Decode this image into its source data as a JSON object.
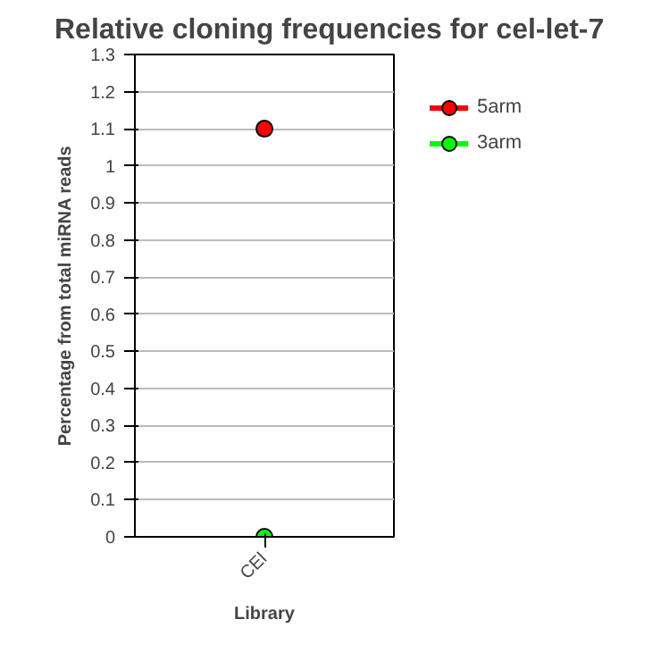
{
  "chart_data": {
    "type": "scatter",
    "title": "Relative cloning frequencies for cel-let-7",
    "xlabel": "Library",
    "ylabel": "Percentage from total miRNA reads",
    "categories": [
      "CEl"
    ],
    "series": [
      {
        "name": "5arm",
        "color": "#ff0000",
        "values": [
          1.1
        ]
      },
      {
        "name": "3arm",
        "color": "#00ff00",
        "values": [
          0
        ]
      }
    ],
    "ylim": [
      0,
      1.3
    ],
    "yticks": [
      0,
      0.1,
      0.2,
      0.3,
      0.4,
      0.5,
      0.6,
      0.7,
      0.8,
      0.9,
      1,
      1.1,
      1.2,
      1.3
    ],
    "grid": "y",
    "legend": "right",
    "marker": "circle"
  }
}
